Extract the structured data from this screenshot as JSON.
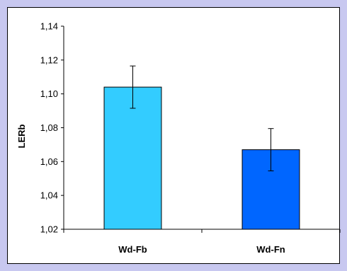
{
  "chart_data": {
    "type": "bar",
    "categories": [
      "Wd-Fb",
      "Wd-Fn"
    ],
    "series": [
      {
        "values": [
          1.104,
          1.067
        ],
        "error": [
          0.0125,
          0.0125
        ],
        "colors": [
          "#33ccff",
          "#0066ff"
        ]
      }
    ],
    "ylabel": "LERb",
    "xlabel": "",
    "ylim": [
      1.02,
      1.14
    ],
    "yticks": [
      1.02,
      1.04,
      1.06,
      1.08,
      1.1,
      1.12,
      1.14
    ],
    "ytick_labels": [
      "1,02",
      "1,04",
      "1,06",
      "1,08",
      "1,10",
      "1,12",
      "1,14"
    ],
    "grid": false,
    "legend": "none"
  },
  "colors": {
    "background": "#c8c8f0",
    "plot_area": "#ffffff",
    "bar_outline": "#000000"
  }
}
